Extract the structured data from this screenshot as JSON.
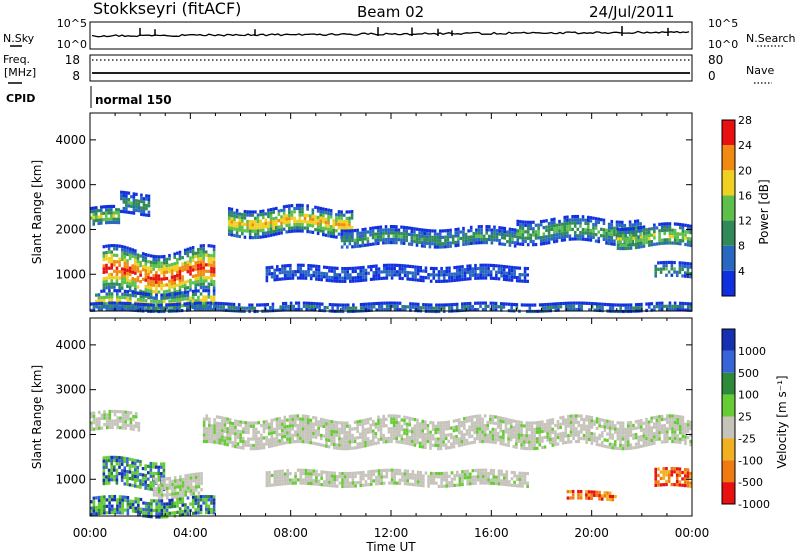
{
  "header": {
    "station": "Stokkseyri (fitACF)",
    "beam": "Beam 02",
    "date": "24/Jul/2011"
  },
  "noise_panel": {
    "left_label": "N.Sky",
    "left_ticks": [
      "10^5",
      "10^0"
    ],
    "right_ticks": [
      "10^5",
      "10^0"
    ],
    "right_label": "N.Search"
  },
  "freq_panel": {
    "left_label_1": "Freq.",
    "left_label_2": "[MHz]",
    "left_ticks": [
      "18",
      "8"
    ],
    "right_ticks": [
      "80",
      "0"
    ],
    "right_label": "Nave",
    "cpid_label": "CPID",
    "cpid_value": "normal 150"
  },
  "chart_data": [
    {
      "type": "heatmap",
      "panel": "power",
      "ylabel": "Slant Range [km]",
      "ylim": [
        180,
        4600
      ],
      "yticks": [
        "1000",
        "2000",
        "3000",
        "4000"
      ],
      "xlabel": "Time UT",
      "xlim_hours": [
        0,
        24
      ],
      "xticks": [
        "00:00",
        "04:00",
        "08:00",
        "12:00",
        "16:00",
        "20:00",
        "00:00"
      ],
      "colorbar": {
        "label": "Power [dB]",
        "ticks": [
          "4",
          "8",
          "12",
          "16",
          "20",
          "24",
          "28"
        ],
        "range": [
          0,
          30
        ],
        "colors": [
          "#1030e0",
          "#2868c0",
          "#2f8a57",
          "#5cc04a",
          "#f0d020",
          "#f08a10",
          "#e81010"
        ]
      },
      "echo_regions": [
        {
          "t_start": 0.0,
          "t_end": 1.2,
          "range_center": 2300,
          "range_half_width": 200,
          "peak_db": 18
        },
        {
          "t_start": 1.2,
          "t_end": 2.4,
          "range_center": 2600,
          "range_half_width": 220,
          "peak_db": 12
        },
        {
          "t_start": 0.5,
          "t_end": 5.0,
          "range_center": 1050,
          "range_half_width": 500,
          "peak_db": 28
        },
        {
          "t_start": 0.2,
          "t_end": 5.0,
          "range_center": 420,
          "range_half_width": 200,
          "peak_db": 20
        },
        {
          "t_start": 5.5,
          "t_end": 10.5,
          "range_center": 2200,
          "range_half_width": 300,
          "peak_db": 22
        },
        {
          "t_start": 10.0,
          "t_end": 17.0,
          "range_center": 1850,
          "range_half_width": 200,
          "peak_db": 12
        },
        {
          "t_start": 7.0,
          "t_end": 17.5,
          "range_center": 1050,
          "range_half_width": 150,
          "peak_db": 6
        },
        {
          "t_start": 17.0,
          "t_end": 22.0,
          "range_center": 2000,
          "range_half_width": 260,
          "peak_db": 14
        },
        {
          "t_start": 21.0,
          "t_end": 24.0,
          "range_center": 1850,
          "range_half_width": 250,
          "peak_db": 18
        },
        {
          "t_start": 22.5,
          "t_end": 24.0,
          "range_center": 1100,
          "range_half_width": 160,
          "peak_db": 12
        },
        {
          "t_start": 0.0,
          "t_end": 24.0,
          "range_center": 280,
          "range_half_width": 90,
          "peak_db": 10
        }
      ]
    },
    {
      "type": "heatmap",
      "panel": "velocity",
      "ylabel": "Slant Range [km]",
      "ylim": [
        180,
        4600
      ],
      "yticks": [
        "1000",
        "2000",
        "3000",
        "4000"
      ],
      "xlabel": "Time UT",
      "xlim_hours": [
        0,
        24
      ],
      "xticks": [
        "00:00",
        "04:00",
        "08:00",
        "12:00",
        "16:00",
        "20:00",
        "00:00"
      ],
      "colorbar": {
        "label": "Velocity [m s⁻¹]",
        "ticks": [
          "1000",
          "500",
          "100",
          "25",
          "-25",
          "-100",
          "-500",
          "-1000"
        ],
        "colors": [
          "#1530b0",
          "#3565d8",
          "#2d8a3a",
          "#66cc33",
          "#c6c3bb",
          "#f0b020",
          "#f07a10",
          "#e81010"
        ]
      },
      "echo_regions": [
        {
          "t_start": 0.0,
          "t_end": 2.0,
          "range_center": 2300,
          "range_half_width": 200,
          "velocity_class": "ground"
        },
        {
          "t_start": 0.5,
          "t_end": 3.0,
          "range_center": 1150,
          "range_half_width": 300,
          "velocity_class": "positive"
        },
        {
          "t_start": 2.5,
          "t_end": 4.5,
          "range_center": 850,
          "range_half_width": 250,
          "velocity_class": "ground"
        },
        {
          "t_start": 0.0,
          "t_end": 5.0,
          "range_center": 400,
          "range_half_width": 200,
          "velocity_class": "positive"
        },
        {
          "t_start": 4.5,
          "t_end": 24.0,
          "range_center": 2050,
          "range_half_width": 320,
          "velocity_class": "ground"
        },
        {
          "t_start": 7.0,
          "t_end": 17.5,
          "range_center": 1050,
          "range_half_width": 150,
          "velocity_class": "ground"
        },
        {
          "t_start": 19.0,
          "t_end": 21.0,
          "range_center": 650,
          "range_half_width": 90,
          "velocity_class": "negative"
        },
        {
          "t_start": 22.5,
          "t_end": 24.0,
          "range_center": 1050,
          "range_half_width": 180,
          "velocity_class": "negative"
        }
      ]
    }
  ]
}
